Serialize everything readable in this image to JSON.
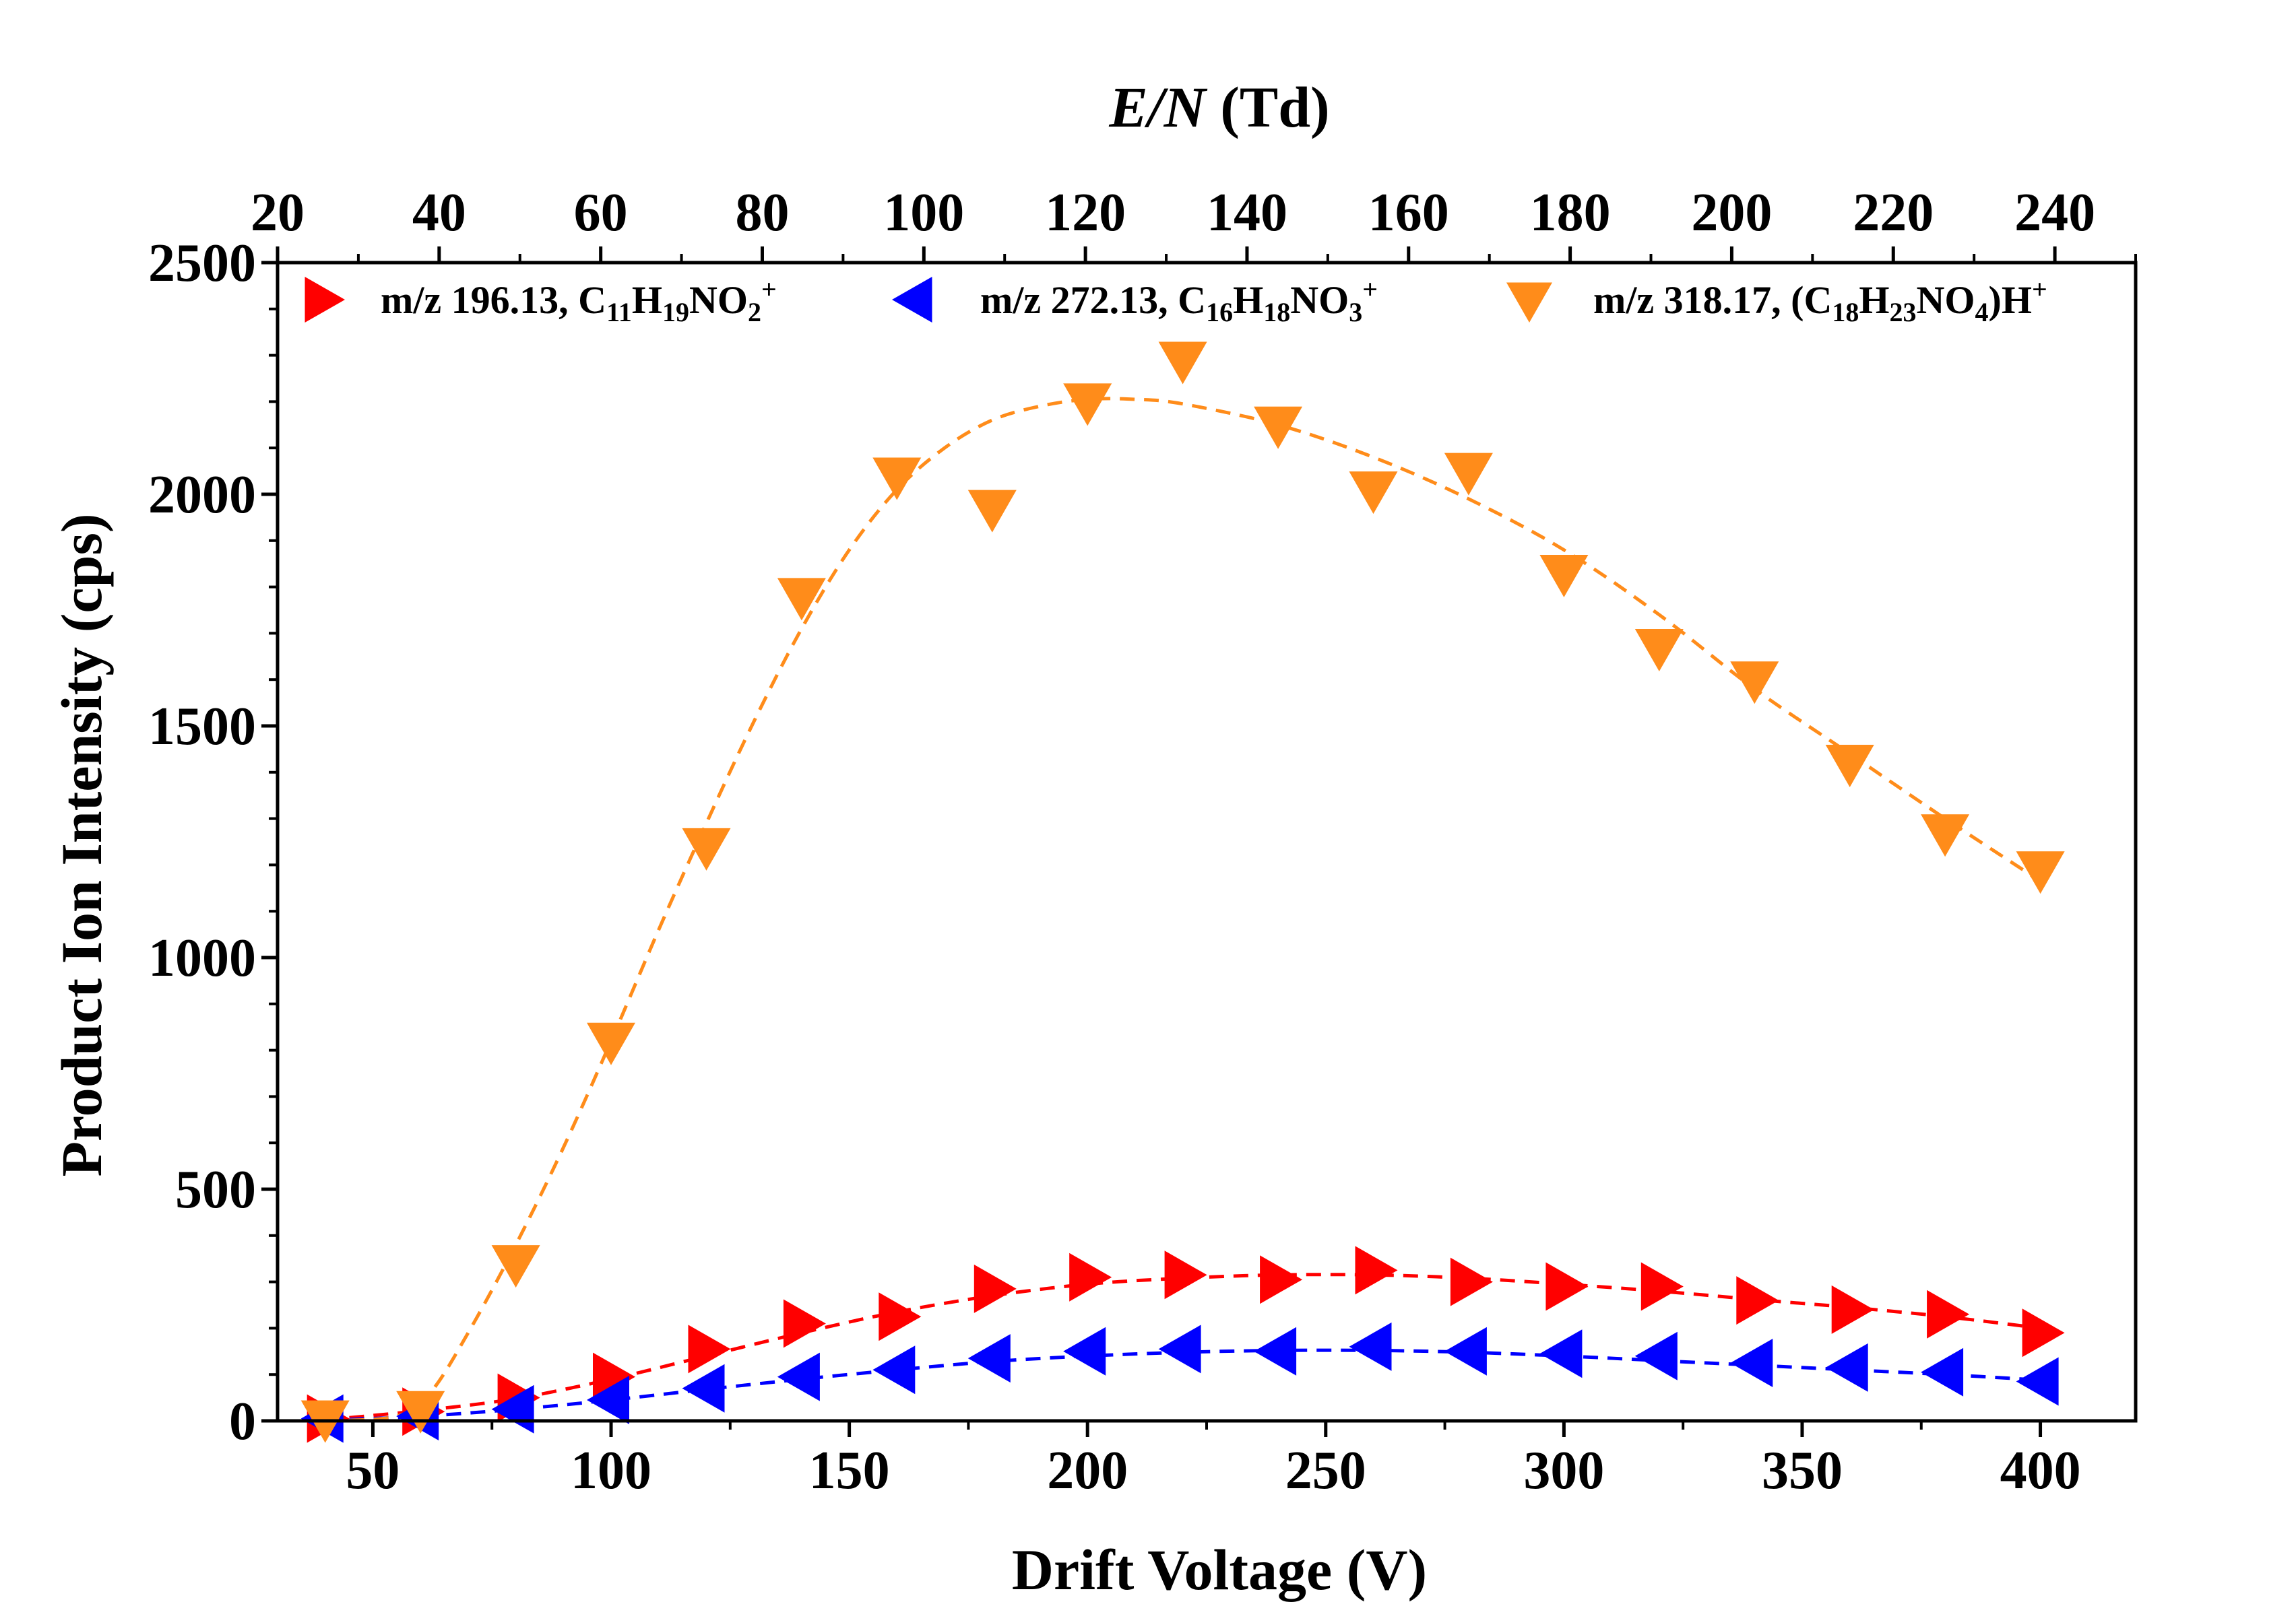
{
  "chart_data": {
    "type": "scatter",
    "xlabel": "Drift Voltage (V)",
    "ylabel": "Product Ion Intensity (cps)",
    "top_axis": {
      "label_italic": "E/N",
      "label_unit": " (Td)",
      "range": [
        20,
        250
      ],
      "ticks": [
        20,
        40,
        60,
        80,
        100,
        120,
        140,
        160,
        180,
        200,
        220,
        240
      ]
    },
    "xlim": [
      30,
      420
    ],
    "ylim": [
      0,
      2500
    ],
    "xticks": [
      50,
      100,
      150,
      200,
      250,
      300,
      350,
      400
    ],
    "yticks": [
      0,
      500,
      1000,
      1500,
      2000,
      2500
    ],
    "legend_placement": "top",
    "grid": false,
    "x": [
      40,
      60,
      80,
      100,
      120,
      140,
      160,
      180,
      200,
      220,
      240,
      260,
      280,
      300,
      320,
      340,
      360,
      380,
      400
    ],
    "series": [
      {
        "name": "m/z 196.13, C11H19NO2+",
        "legend": [
          [
            "m/z 196.13, C",
            ""
          ],
          [
            "11",
            "sub"
          ],
          [
            "H",
            ""
          ],
          [
            "19",
            "sub"
          ],
          [
            "NO",
            ""
          ],
          [
            "2",
            "sub"
          ],
          [
            "+",
            "sup"
          ]
        ],
        "marker": "triangle-right",
        "color": "#ff0000",
        "values": [
          5,
          20,
          50,
          95,
          155,
          210,
          225,
          285,
          310,
          315,
          305,
          325,
          300,
          290,
          290,
          260,
          240,
          230,
          190
        ],
        "fit": [
          [
            40,
            2
          ],
          [
            60,
            22
          ],
          [
            80,
            48
          ],
          [
            100,
            90
          ],
          [
            120,
            140
          ],
          [
            140,
            190
          ],
          [
            160,
            235
          ],
          [
            180,
            270
          ],
          [
            200,
            295
          ],
          [
            220,
            308
          ],
          [
            240,
            315
          ],
          [
            260,
            315
          ],
          [
            280,
            308
          ],
          [
            300,
            295
          ],
          [
            320,
            280
          ],
          [
            340,
            262
          ],
          [
            360,
            245
          ],
          [
            380,
            225
          ],
          [
            400,
            200
          ]
        ]
      },
      {
        "name": "m/z 272.13, C16H18NO3+",
        "legend": [
          [
            "m/z 272.13, C",
            ""
          ],
          [
            "16",
            "sub"
          ],
          [
            "H",
            ""
          ],
          [
            "18",
            "sub"
          ],
          [
            "NO",
            ""
          ],
          [
            "3",
            "sub"
          ],
          [
            "+",
            "sup"
          ]
        ],
        "marker": "triangle-left",
        "color": "#0000ff",
        "values": [
          5,
          10,
          25,
          45,
          70,
          95,
          110,
          135,
          150,
          155,
          150,
          160,
          150,
          145,
          140,
          125,
          115,
          105,
          85
        ],
        "fit": [
          [
            40,
            1
          ],
          [
            60,
            10
          ],
          [
            80,
            25
          ],
          [
            100,
            45
          ],
          [
            120,
            68
          ],
          [
            140,
            90
          ],
          [
            160,
            110
          ],
          [
            180,
            128
          ],
          [
            200,
            140
          ],
          [
            220,
            148
          ],
          [
            240,
            152
          ],
          [
            260,
            152
          ],
          [
            280,
            148
          ],
          [
            300,
            140
          ],
          [
            320,
            130
          ],
          [
            340,
            120
          ],
          [
            360,
            110
          ],
          [
            380,
            100
          ],
          [
            400,
            88
          ]
        ]
      },
      {
        "name": "m/z 318.17, (C18H23NO4)H+",
        "legend": [
          [
            "m/z 318.17, (C",
            ""
          ],
          [
            "18",
            "sub"
          ],
          [
            "H",
            ""
          ],
          [
            "23",
            "sub"
          ],
          [
            "NO",
            ""
          ],
          [
            "4",
            "sub"
          ],
          [
            ")H",
            ""
          ],
          [
            "+",
            "sup"
          ]
        ],
        "marker": "triangle-down",
        "color": "#ff8c1a",
        "values": [
          5,
          25,
          340,
          820,
          1240,
          1780,
          2040,
          1970,
          2200,
          2290,
          2150,
          2010,
          2050,
          1830,
          1670,
          1600,
          1420,
          1270,
          1190
        ],
        "fit": [
          [
            40,
            0
          ],
          [
            55,
            10
          ],
          [
            62,
            60
          ],
          [
            70,
            190
          ],
          [
            80,
            380
          ],
          [
            90,
            590
          ],
          [
            100,
            820
          ],
          [
            110,
            1060
          ],
          [
            120,
            1290
          ],
          [
            130,
            1510
          ],
          [
            140,
            1710
          ],
          [
            150,
            1880
          ],
          [
            160,
            2010
          ],
          [
            170,
            2100
          ],
          [
            180,
            2160
          ],
          [
            190,
            2190
          ],
          [
            200,
            2205
          ],
          [
            210,
            2205
          ],
          [
            220,
            2195
          ],
          [
            240,
            2150
          ],
          [
            260,
            2080
          ],
          [
            280,
            1990
          ],
          [
            300,
            1880
          ],
          [
            320,
            1740
          ],
          [
            340,
            1580
          ],
          [
            360,
            1440
          ],
          [
            380,
            1300
          ],
          [
            400,
            1165
          ]
        ]
      }
    ]
  }
}
